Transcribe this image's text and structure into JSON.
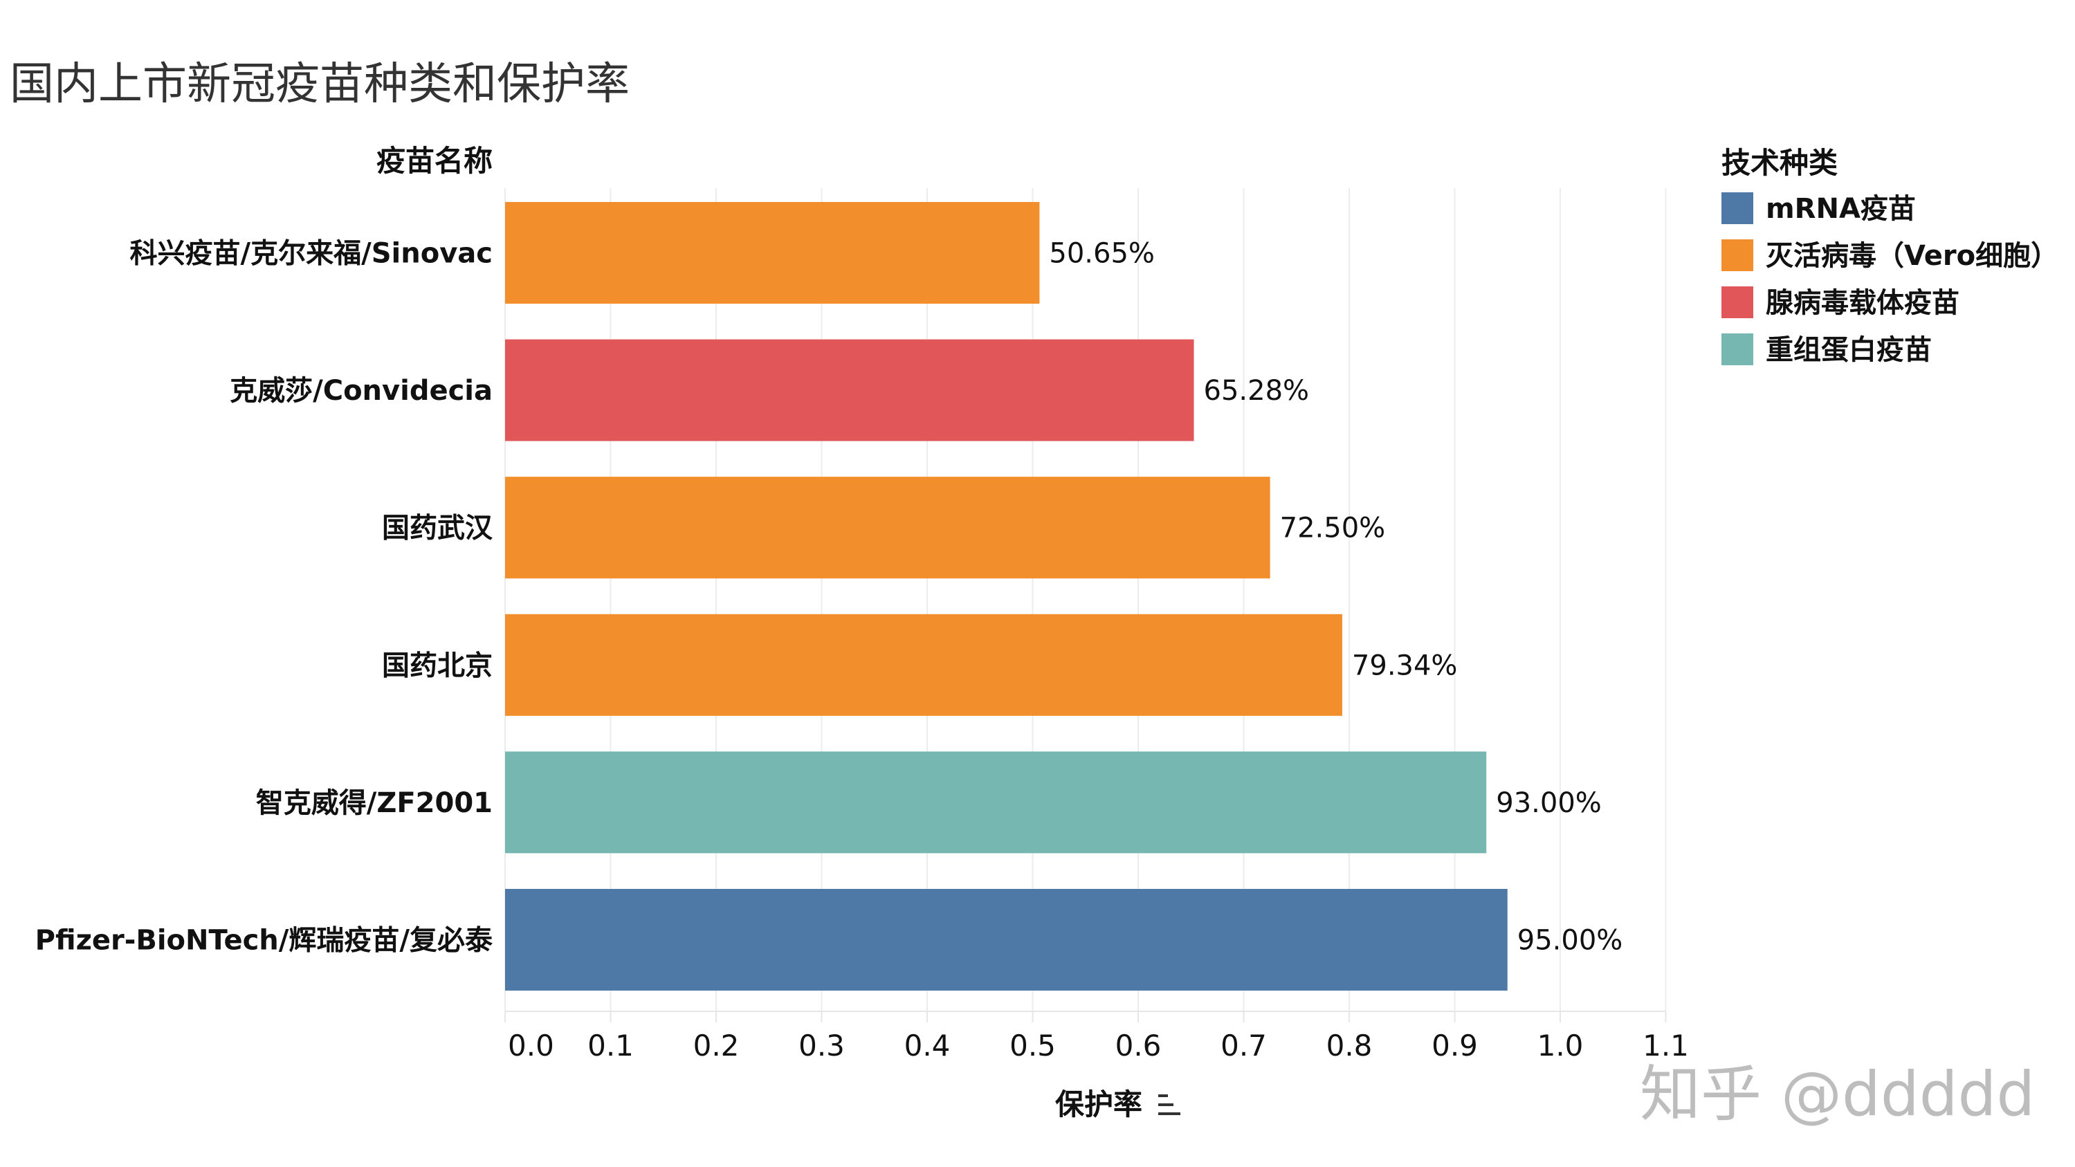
{
  "chart_data": {
    "type": "bar",
    "orientation": "horizontal",
    "title": "国内上市新冠疫苗种类和保护率",
    "category_header": "疫苗名称",
    "categories": [
      "科兴疫苗/克尔来福/Sinovac",
      "克威莎/Convidecia",
      "国药武汉",
      "国药北京",
      "智克威得/ZF2001",
      "Pfizer-BioNTech/辉瑞疫苗/复必泰"
    ],
    "values": [
      0.5065,
      0.6528,
      0.725,
      0.7934,
      0.93,
      0.95
    ],
    "value_labels": [
      "50.65%",
      "65.28%",
      "72.50%",
      "79.34%",
      "93.00%",
      "95.00%"
    ],
    "bar_tech": [
      "灭活病毒（Vero细胞）",
      "腺病毒载体疫苗",
      "灭活病毒（Vero细胞）",
      "灭活病毒（Vero细胞）",
      "重组蛋白疫苗",
      "mRNA疫苗"
    ],
    "xlabel": "保护率",
    "xlim": [
      0,
      1.1
    ],
    "xticks": [
      "0.0",
      "0.1",
      "0.2",
      "0.3",
      "0.4",
      "0.5",
      "0.6",
      "0.7",
      "0.8",
      "0.9",
      "1.0",
      "1.1"
    ],
    "grid": true,
    "legend": {
      "title": "技术种类",
      "placement": "top-right",
      "items": [
        {
          "name": "mRNA疫苗",
          "color": "#4e79a7"
        },
        {
          "name": "灭活病毒（Vero细胞）",
          "color": "#f28e2b"
        },
        {
          "name": "腺病毒载体疫苗",
          "color": "#e15759"
        },
        {
          "name": "重组蛋白疫苗",
          "color": "#76b7b2"
        }
      ]
    }
  },
  "watermark": "知乎 @ddddd"
}
